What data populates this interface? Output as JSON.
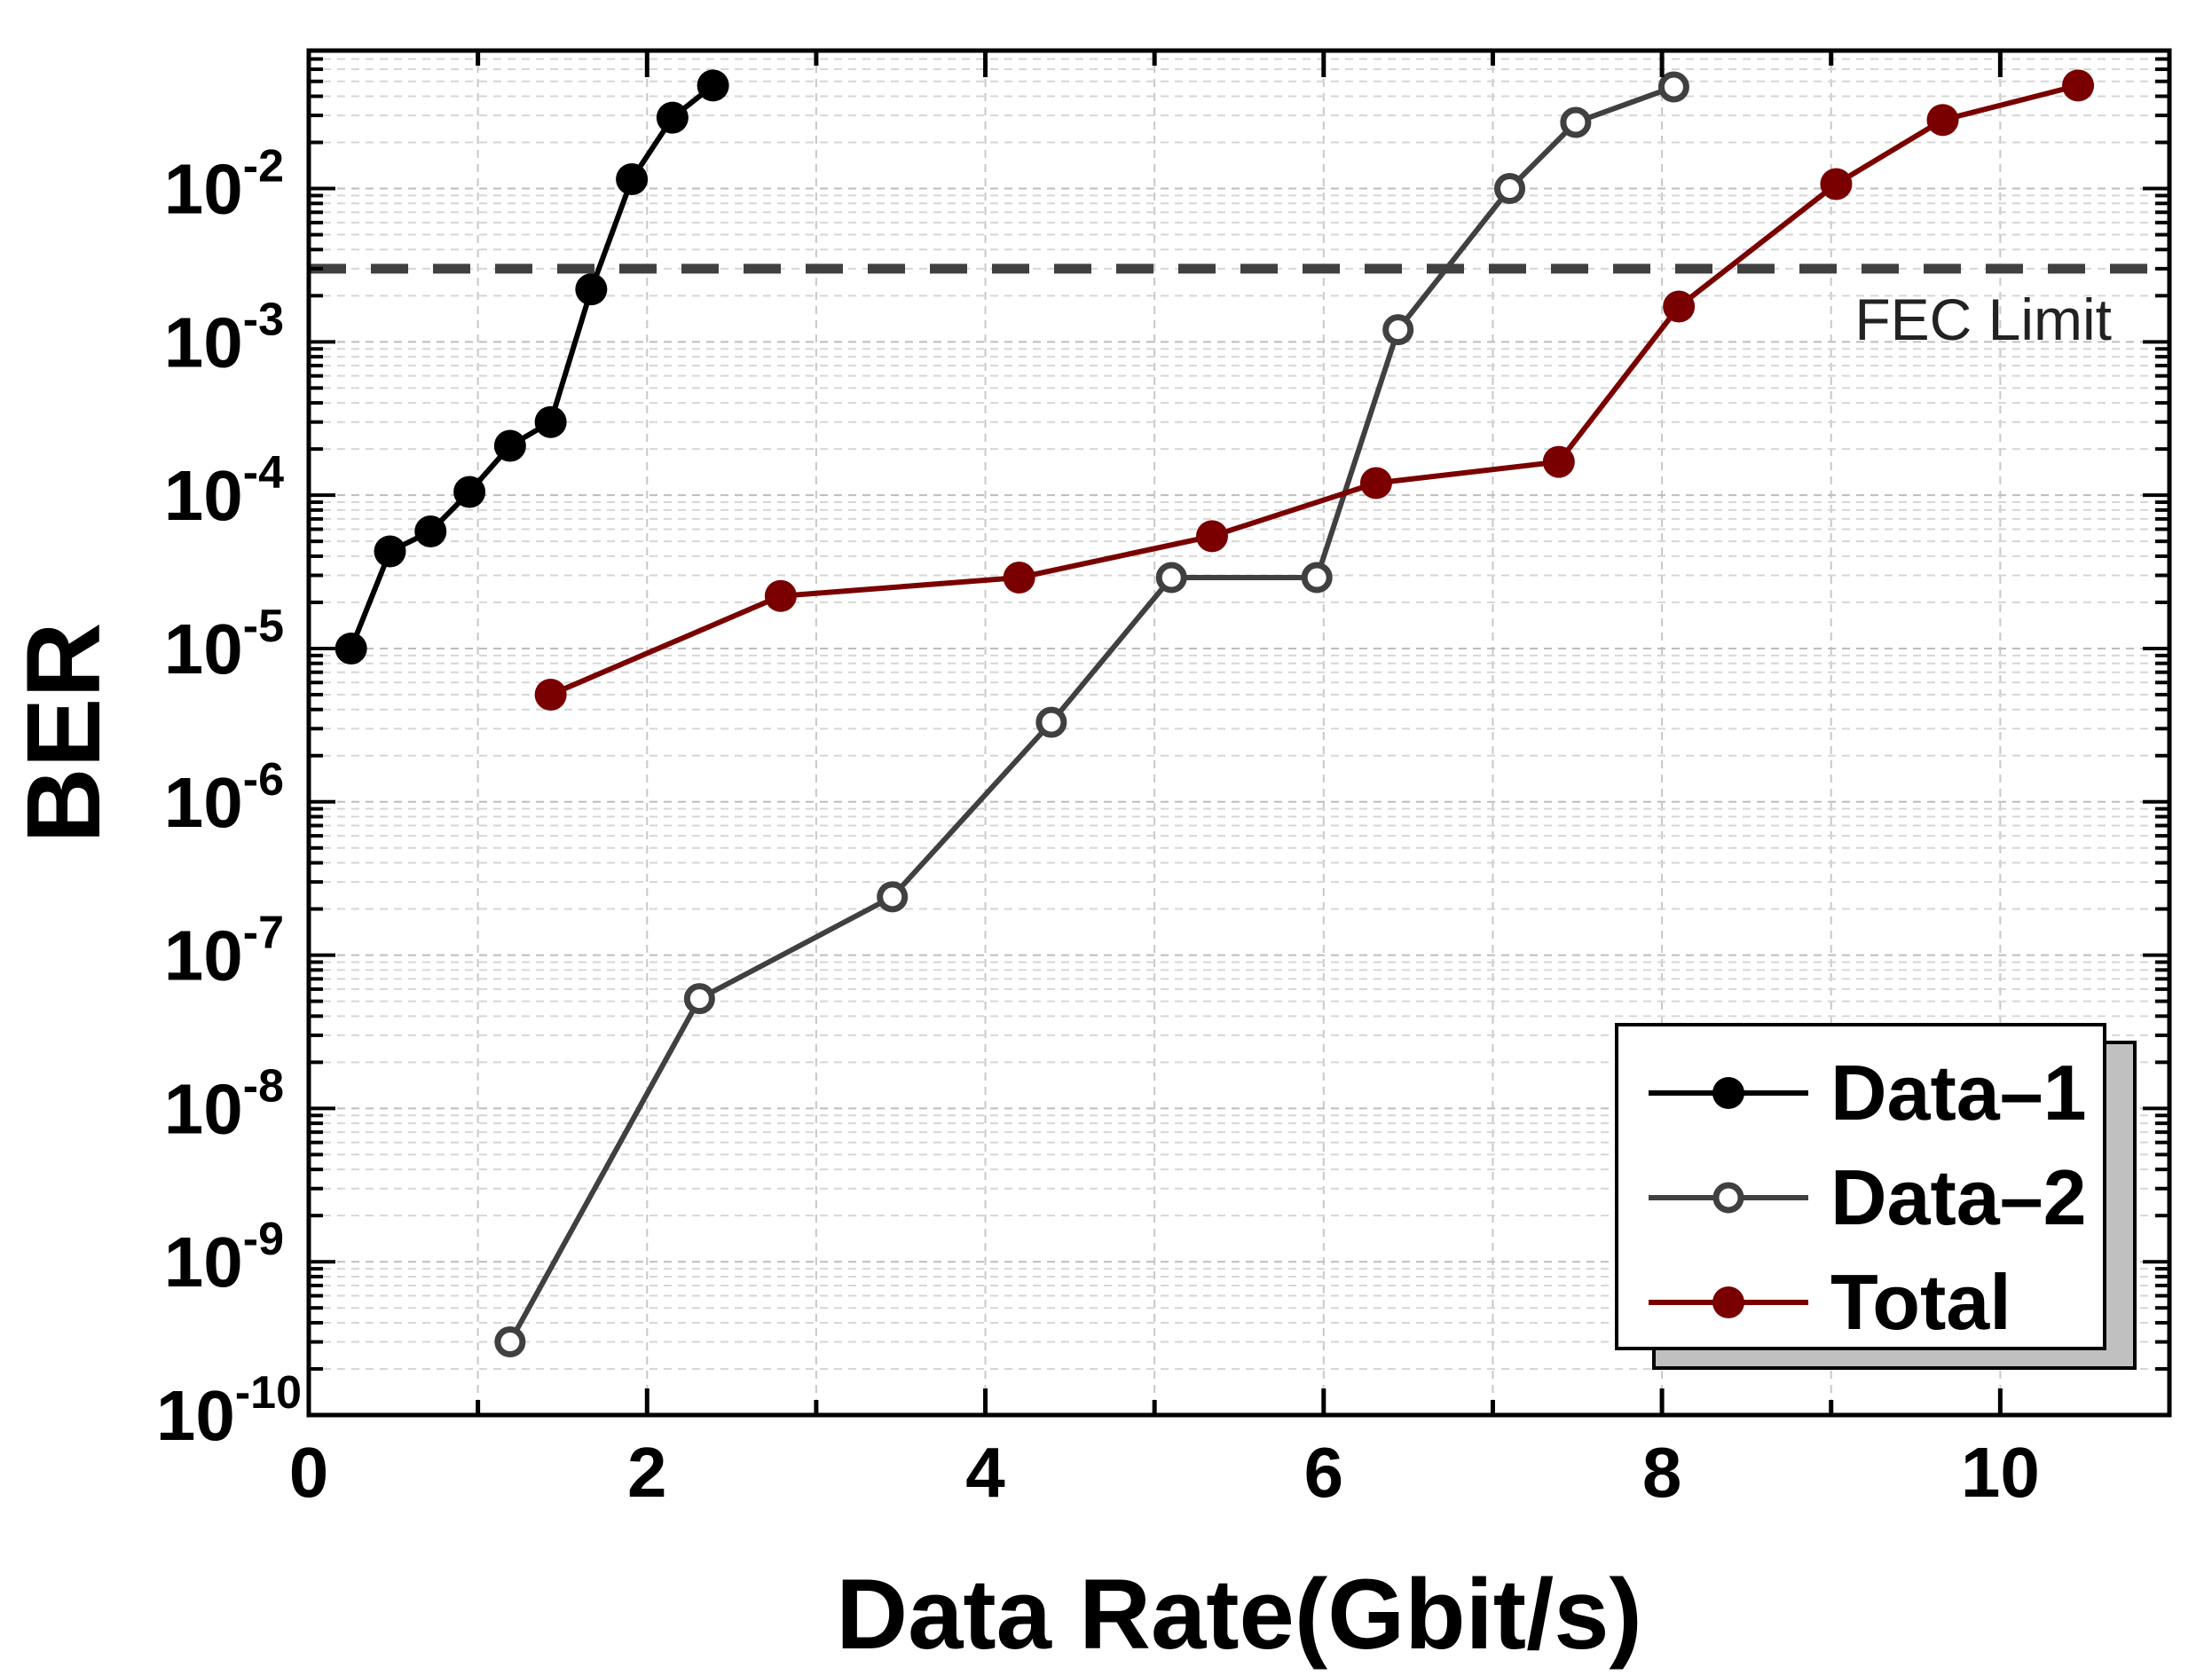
{
  "chart_data": {
    "type": "line",
    "title": "",
    "xlabel": "Data Rate(Gbit/s)",
    "ylabel": "BER",
    "xlim": [
      0,
      11
    ],
    "ylim_log10": [
      -10,
      -1.1
    ],
    "x_ticks": [
      0,
      2,
      4,
      6,
      8,
      10
    ],
    "y_ticks_exponents": [
      -2,
      -3,
      -4,
      -5,
      -6,
      -7,
      -8,
      -9,
      -10
    ],
    "grid": true,
    "legend_position": "bottom-right",
    "fec_limit": {
      "label": "FEC Limit",
      "y": 0.003,
      "color": "#404040"
    },
    "series": [
      {
        "name": "Data–1",
        "color": "#000000",
        "marker": "filled",
        "x": [
          0.25,
          0.48,
          0.72,
          0.95,
          1.19,
          1.43,
          1.67,
          1.91,
          2.15,
          2.39
        ],
        "y": [
          1e-05,
          4.3e-05,
          5.8e-05,
          0.000105,
          0.00021,
          0.0003,
          0.0022,
          0.0115,
          0.029,
          0.047
        ]
      },
      {
        "name": "Data–2",
        "color": "#404040",
        "marker": "open",
        "x": [
          1.19,
          2.31,
          3.45,
          4.39,
          5.1,
          5.96,
          6.44,
          7.1,
          7.49,
          8.07
        ],
        "y": [
          3e-10,
          5.2e-08,
          2.4e-07,
          3.3e-06,
          2.9e-05,
          2.9e-05,
          0.0012,
          0.01,
          0.027,
          0.046
        ]
      },
      {
        "name": "Total",
        "color": "#7a0000",
        "marker": "filled",
        "x": [
          1.43,
          2.79,
          4.2,
          5.34,
          6.31,
          7.39,
          8.1,
          9.03,
          9.66,
          10.46
        ],
        "y": [
          5e-06,
          2.2e-05,
          2.9e-05,
          5.4e-05,
          0.00012,
          0.000165,
          0.0017,
          0.0107,
          0.028,
          0.047
        ]
      }
    ]
  }
}
